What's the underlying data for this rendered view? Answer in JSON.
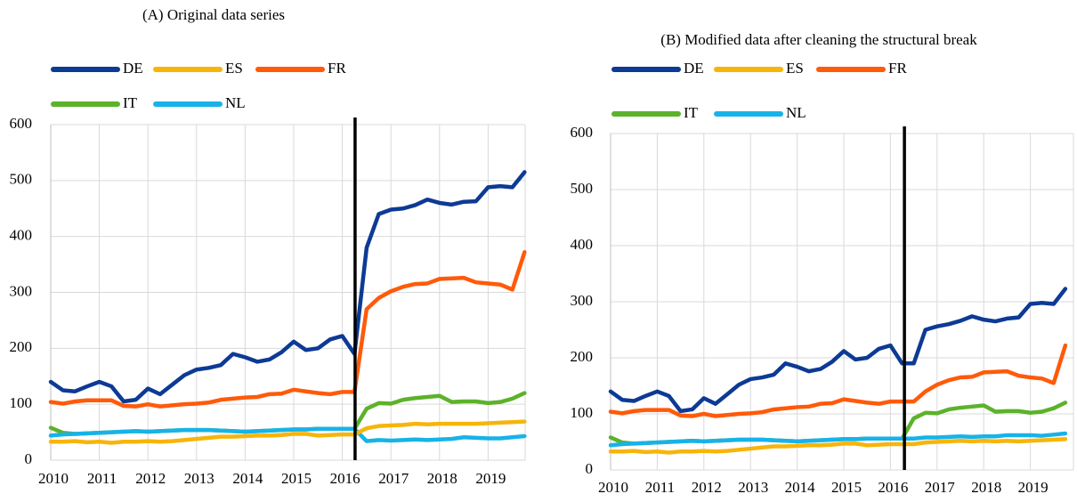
{
  "chart_data": [
    {
      "type": "line",
      "title": "(A) Original data series",
      "categories": [
        "2010",
        null,
        null,
        null,
        "2011",
        null,
        null,
        null,
        "2012",
        null,
        null,
        null,
        "2013",
        null,
        null,
        null,
        "2014",
        null,
        null,
        null,
        "2015",
        null,
        null,
        null,
        "2016",
        null,
        null,
        null,
        "2017",
        null,
        null,
        null,
        "2018",
        null,
        null,
        null,
        "2019",
        null,
        null,
        null
      ],
      "series": [
        {
          "name": "DE",
          "color": "#0d3a94",
          "values": [
            140,
            125,
            123,
            132,
            140,
            132,
            105,
            108,
            128,
            118,
            135,
            152,
            162,
            165,
            170,
            190,
            184,
            176,
            180,
            193,
            212,
            197,
            200,
            216,
            222,
            190,
            380,
            440,
            448,
            450,
            456,
            466,
            460,
            457,
            462,
            463,
            488,
            490,
            488,
            515
          ]
        },
        {
          "name": "ES",
          "color": "#f7b50a",
          "values": [
            33,
            33,
            34,
            32,
            33,
            31,
            33,
            33,
            34,
            33,
            34,
            36,
            38,
            40,
            42,
            42,
            43,
            44,
            44,
            45,
            47,
            47,
            44,
            45,
            46,
            46,
            57,
            61,
            62,
            63,
            65,
            64,
            65,
            65,
            65,
            65,
            66,
            67,
            68,
            69
          ]
        },
        {
          "name": "FR",
          "color": "#ff5a0a",
          "values": [
            104,
            101,
            105,
            107,
            107,
            107,
            97,
            96,
            100,
            96,
            98,
            100,
            101,
            103,
            108,
            110,
            112,
            113,
            118,
            119,
            126,
            123,
            120,
            118,
            122,
            122,
            270,
            290,
            302,
            310,
            315,
            316,
            324,
            325,
            326,
            318,
            316,
            314,
            305,
            372
          ]
        },
        {
          "name": "IT",
          "color": "#5cb22b",
          "values": [
            58,
            49,
            47,
            48,
            49,
            50,
            51,
            52,
            51,
            52,
            53,
            54,
            54,
            54,
            53,
            52,
            51,
            52,
            53,
            54,
            55,
            55,
            56,
            56,
            56,
            56,
            92,
            102,
            101,
            108,
            111,
            113,
            115,
            104,
            105,
            105,
            102,
            104,
            110,
            120
          ]
        },
        {
          "name": "NL",
          "color": "#17b3e8",
          "values": [
            44,
            46,
            47,
            48,
            49,
            50,
            51,
            52,
            51,
            52,
            53,
            54,
            54,
            54,
            53,
            52,
            51,
            52,
            53,
            54,
            55,
            55,
            56,
            56,
            56,
            56,
            34,
            36,
            35,
            36,
            37,
            36,
            37,
            38,
            41,
            40,
            39,
            39,
            41,
            43
          ]
        }
      ],
      "ylim": [
        0,
        600
      ],
      "yticks": [
        0,
        100,
        200,
        300,
        400,
        500,
        600
      ],
      "grid": true
    },
    {
      "type": "line",
      "title": "(B) Modified data after cleaning the structural break",
      "categories": [
        "2010",
        null,
        null,
        null,
        "2011",
        null,
        null,
        null,
        "2012",
        null,
        null,
        null,
        "2013",
        null,
        null,
        null,
        "2014",
        null,
        null,
        null,
        "2015",
        null,
        null,
        null,
        "2016",
        null,
        null,
        null,
        "2017",
        null,
        null,
        null,
        "2018",
        null,
        null,
        null,
        "2019",
        null,
        null,
        null
      ],
      "series": [
        {
          "name": "DE",
          "color": "#0d3a94",
          "values": [
            140,
            125,
            123,
            132,
            140,
            132,
            105,
            108,
            128,
            118,
            135,
            152,
            162,
            165,
            170,
            190,
            184,
            176,
            180,
            193,
            212,
            197,
            200,
            216,
            222,
            190,
            190,
            250,
            256,
            260,
            266,
            274,
            268,
            265,
            270,
            272,
            296,
            298,
            296,
            323
          ]
        },
        {
          "name": "ES",
          "color": "#f7b50a",
          "values": [
            33,
            33,
            34,
            32,
            33,
            31,
            33,
            33,
            34,
            33,
            34,
            36,
            38,
            40,
            42,
            42,
            43,
            44,
            44,
            45,
            47,
            47,
            44,
            45,
            46,
            46,
            46,
            49,
            50,
            51,
            52,
            51,
            52,
            51,
            52,
            51,
            52,
            53,
            54,
            55
          ]
        },
        {
          "name": "FR",
          "color": "#ff5a0a",
          "values": [
            104,
            101,
            105,
            107,
            107,
            107,
            97,
            96,
            100,
            96,
            98,
            100,
            101,
            103,
            108,
            110,
            112,
            113,
            118,
            119,
            126,
            123,
            120,
            118,
            122,
            122,
            122,
            140,
            152,
            160,
            165,
            166,
            174,
            175,
            176,
            168,
            165,
            163,
            155,
            222
          ]
        },
        {
          "name": "IT",
          "color": "#5cb22b",
          "values": [
            58,
            49,
            47,
            48,
            49,
            50,
            51,
            52,
            51,
            52,
            53,
            54,
            54,
            54,
            53,
            52,
            51,
            52,
            53,
            54,
            55,
            55,
            56,
            56,
            56,
            56,
            92,
            102,
            101,
            108,
            111,
            113,
            115,
            104,
            105,
            105,
            102,
            104,
            110,
            120
          ]
        },
        {
          "name": "NL",
          "color": "#17b3e8",
          "values": [
            44,
            46,
            47,
            48,
            49,
            50,
            51,
            52,
            51,
            52,
            53,
            54,
            54,
            54,
            53,
            52,
            51,
            52,
            53,
            54,
            55,
            55,
            56,
            56,
            56,
            56,
            56,
            58,
            58,
            59,
            60,
            59,
            60,
            60,
            62,
            62,
            62,
            61,
            63,
            65
          ]
        }
      ],
      "ylim": [
        0,
        600
      ],
      "yticks": [
        0,
        100,
        200,
        300,
        400,
        500,
        600
      ],
      "grid": true
    }
  ]
}
